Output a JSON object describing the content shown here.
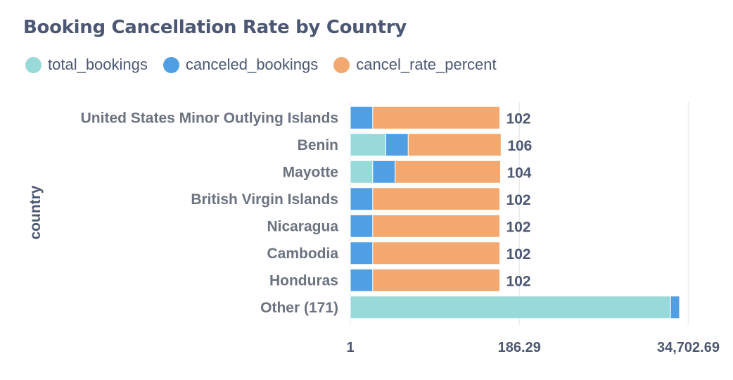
{
  "title": "Booking Cancellation Rate by Country",
  "colors": {
    "total_bookings": "#98d9d9",
    "canceled_bookings": "#509ee3",
    "cancel_rate_percent": "#f2a86f"
  },
  "chart_data": {
    "type": "bar",
    "orientation": "horizontal",
    "stacked": true,
    "title": "Booking Cancellation Rate by Country",
    "ylabel": "country",
    "xlabel": "",
    "x_scale": "log",
    "x_ticks": [
      "1",
      "186.29",
      "34,702.69"
    ],
    "xlim": [
      1,
      40000
    ],
    "grid": "vertical",
    "legend_position": "top-left",
    "categories": [
      "United States Minor Outlying Islands",
      "Benin",
      "Mayotte",
      "British Virgin Islands",
      "Nicaragua",
      "Cambodia",
      "Honduras",
      "Other (171)"
    ],
    "series": [
      {
        "name": "total_bookings",
        "values": [
          1,
          3,
          2,
          1,
          1,
          1,
          1,
          20000
        ]
      },
      {
        "name": "canceled_bookings",
        "values": [
          1,
          3,
          2,
          1,
          1,
          1,
          1,
          6500
        ]
      },
      {
        "name": "cancel_rate_percent",
        "values": [
          100,
          100,
          100,
          100,
          100,
          100,
          100,
          33
        ]
      }
    ],
    "data_labels": [
      "102",
      "106",
      "104",
      "102",
      "102",
      "102",
      "102",
      ""
    ]
  }
}
